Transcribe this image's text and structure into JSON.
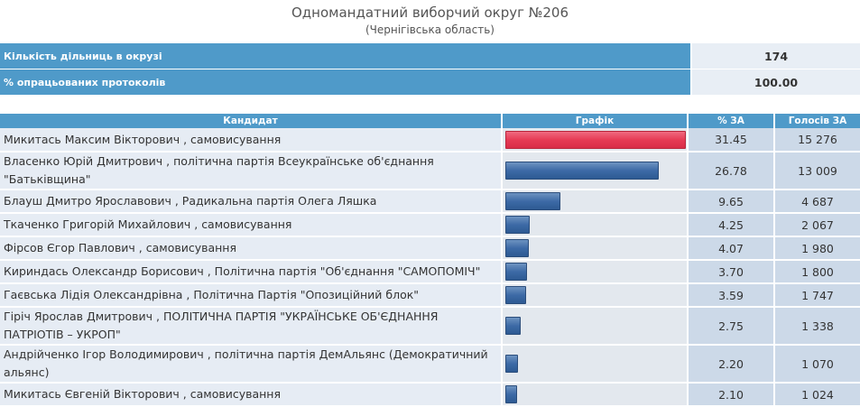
{
  "header": {
    "title": "Одномандатний виборчий округ №206",
    "subtitle": "(Чернігівська область)"
  },
  "summary": [
    {
      "label": "Кількість дільниць в окрузі",
      "value": "174"
    },
    {
      "label": "% опрацьованих протоколів",
      "value": "100.00"
    }
  ],
  "table": {
    "headers": {
      "candidate": "Кандидат",
      "graph": "Графік",
      "pct": "% ЗА",
      "votes": "Голосів ЗА"
    },
    "rows": [
      {
        "candidate": "Микитась Максим Вікторович , самовисування",
        "pct": "31.45",
        "votes": "15 276",
        "share": 31.45,
        "lead": true
      },
      {
        "candidate": "Власенко Юрій Дмитрович , політична партія Всеукраїнське об'єднання \"Батьківщина\"",
        "pct": "26.78",
        "votes": "13 009",
        "share": 26.78
      },
      {
        "candidate": "Блауш Дмитро Ярославович , Радикальна партія Олега Ляшка",
        "pct": "9.65",
        "votes": "4 687",
        "share": 9.65
      },
      {
        "candidate": "Ткаченко Григорій Михайлович , самовисування",
        "pct": "4.25",
        "votes": "2 067",
        "share": 4.25
      },
      {
        "candidate": "Фірсов Єгор Павлович , самовисування",
        "pct": "4.07",
        "votes": "1 980",
        "share": 4.07
      },
      {
        "candidate": "Кириндась Олександр Борисович , Політична партія \"Об'єднання \"САМОПОМІЧ\"",
        "pct": "3.70",
        "votes": "1 800",
        "share": 3.7
      },
      {
        "candidate": "Гаєвська Лідія Олександрівна , Політична Партія \"Опозиційний блок\"",
        "pct": "3.59",
        "votes": "1 747",
        "share": 3.59
      },
      {
        "candidate": "Гіріч Ярослав Дмитрович , ПОЛІТИЧНА ПАРТІЯ \"УКРАЇНСЬКЕ ОБ'ЄДНАННЯ ПАТРІОТІВ – УКРОП\"",
        "pct": "2.75",
        "votes": "1 338",
        "share": 2.75
      },
      {
        "candidate": "Андрійченко Ігор Володимирович , політична партія ДемАльянс (Демократичний альянс)",
        "pct": "2.20",
        "votes": "1 070",
        "share": 2.2
      },
      {
        "candidate": "Микитась Євгеній Вікторович , самовисування",
        "pct": "2.10",
        "votes": "1 024",
        "share": 2.1
      }
    ]
  }
}
